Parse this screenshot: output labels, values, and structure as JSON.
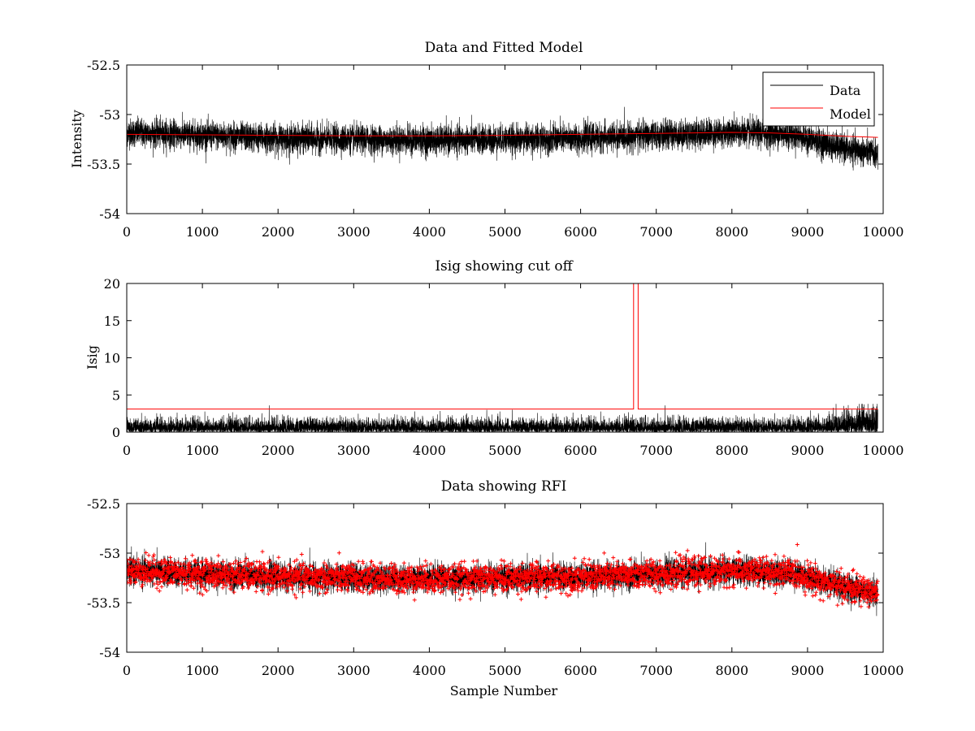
{
  "figure": {
    "background": "#ffffff"
  },
  "chart_data": [
    {
      "type": "line",
      "title": "Data and Fitted Model",
      "xlabel": "",
      "ylabel": "Intensity",
      "xlim": [
        0,
        10000
      ],
      "ylim": [
        -54,
        -52.5
      ],
      "xticks": [
        "0",
        "1000",
        "2000",
        "3000",
        "4000",
        "5000",
        "6000",
        "7000",
        "8000",
        "9000",
        "10000"
      ],
      "yticks": [
        "-52.5",
        "-53",
        "-53.5",
        "-54"
      ],
      "legend": {
        "position": "top-right",
        "entries": [
          "Data",
          "Model"
        ]
      },
      "series": [
        {
          "name": "Data",
          "color": "#000000",
          "style": "line",
          "x_range": [
            0,
            9930
          ],
          "samples": 9930,
          "trend": {
            "x": [
              0,
              2000,
              4000,
              6000,
              8000,
              8800,
              9400,
              9930
            ],
            "y": [
              -53.18,
              -53.24,
              -53.26,
              -53.24,
              -53.18,
              -53.2,
              -53.33,
              -53.4
            ]
          },
          "noise_sd": 0.07,
          "y_extremes": [
            -53.6,
            -52.87
          ]
        },
        {
          "name": "Model",
          "color": "#ff0000",
          "style": "line",
          "x": [
            0,
            1000,
            2000,
            3000,
            4000,
            5000,
            6000,
            7000,
            8000,
            8500,
            9000,
            9500,
            9930
          ],
          "y": [
            -53.2,
            -53.205,
            -53.21,
            -53.215,
            -53.215,
            -53.21,
            -53.2,
            -53.19,
            -53.18,
            -53.185,
            -53.2,
            -53.22,
            -53.23
          ]
        }
      ]
    },
    {
      "type": "line",
      "title": "Isig showing cut off",
      "xlabel": "",
      "ylabel": "Isig",
      "xlim": [
        0,
        10000
      ],
      "ylim": [
        0,
        20
      ],
      "xticks": [
        "0",
        "1000",
        "2000",
        "3000",
        "4000",
        "5000",
        "6000",
        "7000",
        "8000",
        "9000",
        "10000"
      ],
      "yticks": [
        "20",
        "15",
        "10",
        "5",
        "0"
      ],
      "series": [
        {
          "name": "Isig",
          "color": "#000000",
          "style": "line",
          "x_range": [
            0,
            9930
          ],
          "samples": 9930,
          "mean": 0.8,
          "max_typical": 3.8
        },
        {
          "name": "cut off",
          "color": "#ff0000",
          "style": "line",
          "x": [
            0,
            6700,
            6700,
            6760,
            6760,
            9930
          ],
          "y": [
            3.1,
            3.1,
            20,
            20,
            3.1,
            3.1
          ]
        }
      ]
    },
    {
      "type": "scatter",
      "title": "Data showing RFI",
      "xlabel": "Sample Number",
      "ylabel": "",
      "xlim": [
        0,
        10000
      ],
      "ylim": [
        -54,
        -52.5
      ],
      "xticks": [
        "0",
        "1000",
        "2000",
        "3000",
        "4000",
        "5000",
        "6000",
        "7000",
        "8000",
        "9000",
        "10000"
      ],
      "yticks": [
        "-52.5",
        "-53",
        "-53.5",
        "-54"
      ],
      "series": [
        {
          "name": "Data",
          "color": "#000000",
          "style": "line",
          "x_range": [
            0,
            9930
          ],
          "trend": {
            "x": [
              0,
              2000,
              4000,
              6000,
              8000,
              8800,
              9400,
              9930
            ],
            "y": [
              -53.18,
              -53.24,
              -53.26,
              -53.24,
              -53.18,
              -53.2,
              -53.33,
              -53.4
            ]
          },
          "noise_sd": 0.07
        },
        {
          "name": "RFI",
          "color": "#ff0000",
          "style": "markers",
          "marker": "+",
          "x_range": [
            0,
            9930
          ],
          "trend": {
            "x": [
              0,
              2000,
              4000,
              6000,
              8000,
              8800,
              9400,
              9930
            ],
            "y": [
              -53.18,
              -53.24,
              -53.26,
              -53.24,
              -53.18,
              -53.2,
              -53.33,
              -53.4
            ]
          },
          "noise_sd": 0.07,
          "y_extremes": [
            -53.6,
            -52.88
          ]
        }
      ]
    }
  ]
}
